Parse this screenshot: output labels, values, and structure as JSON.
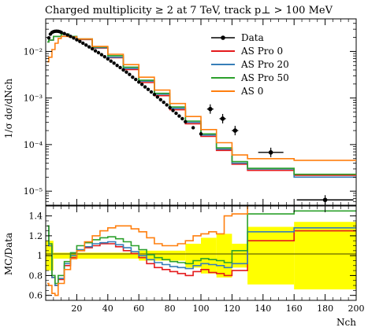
{
  "chart_data": {
    "type": "line",
    "title": "Charged multiplicity ≥ 2 at 7 TeV, track p⊥ > 100 MeV",
    "top_panel": {
      "ylabel": "1/σ dσ/dNch",
      "yscale": "log",
      "ylim": [
        5e-06,
        0.05
      ],
      "yticks": [
        "10⁻²",
        "10⁻³",
        "10⁻⁴",
        "10⁻⁵"
      ],
      "legend": [
        "Data",
        "AS Pro 0",
        "AS Pro 20",
        "AS Pro 50",
        "AS 0"
      ],
      "legend_position": "top-right"
    },
    "ratio_panel": {
      "ylabel": "MC/Data",
      "ylim": [
        0.55,
        1.5
      ],
      "yticks": [
        "0.6",
        "0.8",
        "1",
        "1.2",
        "1.4"
      ]
    },
    "x": {
      "label": "Nch",
      "lim": [
        0,
        200
      ],
      "ticks": [
        "20",
        "40",
        "60",
        "80",
        "100",
        "120",
        "140",
        "160",
        "180",
        "200"
      ]
    },
    "series": [
      {
        "name": "Data",
        "color": "#000000",
        "points": [
          [
            2,
            0.0195
          ],
          [
            3,
            0.0235
          ],
          [
            4,
            0.0255
          ],
          [
            5,
            0.0265
          ],
          [
            6,
            0.027
          ],
          [
            7,
            0.0272
          ],
          [
            8,
            0.027
          ],
          [
            9,
            0.0265
          ],
          [
            10,
            0.0258
          ],
          [
            12,
            0.0242
          ],
          [
            14,
            0.0226
          ],
          [
            16,
            0.021
          ],
          [
            18,
            0.0194
          ],
          [
            20,
            0.0178
          ],
          [
            22,
            0.0164
          ],
          [
            24,
            0.015
          ],
          [
            26,
            0.0137
          ],
          [
            28,
            0.0125
          ],
          [
            30,
            0.0114
          ],
          [
            32,
            0.0103
          ],
          [
            34,
            0.0094
          ],
          [
            36,
            0.0085
          ],
          [
            38,
            0.0077
          ],
          [
            40,
            0.0069
          ],
          [
            42,
            0.0062
          ],
          [
            44,
            0.0056
          ],
          [
            46,
            0.005
          ],
          [
            48,
            0.0045
          ],
          [
            50,
            0.004
          ],
          [
            52,
            0.0036
          ],
          [
            54,
            0.0032
          ],
          [
            56,
            0.0028
          ],
          [
            58,
            0.0025
          ],
          [
            60,
            0.0022
          ],
          [
            62,
            0.00196
          ],
          [
            64,
            0.00173
          ],
          [
            66,
            0.00153
          ],
          [
            68,
            0.00135
          ],
          [
            70,
            0.00119
          ],
          [
            72,
            0.00105
          ],
          [
            74,
            0.00092
          ],
          [
            76,
            0.00081
          ],
          [
            78,
            0.00071
          ],
          [
            80,
            0.00062
          ],
          [
            82,
            0.00054
          ],
          [
            84,
            0.00047
          ],
          [
            86,
            0.00041
          ],
          [
            88,
            0.00036
          ],
          [
            90,
            0.00031
          ],
          [
            95,
            0.00023
          ],
          [
            100,
            0.00017
          ],
          [
            106,
            0.00058
          ],
          [
            114,
            0.00036
          ],
          [
            122,
            0.0002
          ],
          [
            145,
            6.8e-05
          ],
          [
            180,
            6.5e-06
          ]
        ]
      },
      {
        "name": "AS Pro 0",
        "color": "#e41a1c",
        "points": [
          [
            1,
            0.016
          ],
          [
            2,
            0.0175
          ],
          [
            5,
            0.021
          ],
          [
            10,
            0.0235
          ],
          [
            15,
            0.021
          ],
          [
            20,
            0.018
          ],
          [
            30,
            0.0118
          ],
          [
            40,
            0.0073
          ],
          [
            50,
            0.0041
          ],
          [
            60,
            0.00215
          ],
          [
            70,
            0.00112
          ],
          [
            80,
            0.00056
          ],
          [
            90,
            0.00028
          ],
          [
            100,
            0.00015
          ],
          [
            110,
            7.5e-05
          ],
          [
            120,
            3.8e-05
          ],
          [
            130,
            2.8e-05
          ],
          [
            160,
            2.2e-05
          ],
          [
            200,
            2.2e-05
          ]
        ]
      },
      {
        "name": "AS Pro 20",
        "color": "#377eb8",
        "points": [
          [
            1,
            0.016
          ],
          [
            2,
            0.0175
          ],
          [
            5,
            0.021
          ],
          [
            10,
            0.0235
          ],
          [
            15,
            0.021
          ],
          [
            20,
            0.0182
          ],
          [
            30,
            0.012
          ],
          [
            40,
            0.0075
          ],
          [
            50,
            0.0043
          ],
          [
            60,
            0.0023
          ],
          [
            70,
            0.00121
          ],
          [
            80,
            0.0006
          ],
          [
            90,
            0.0003
          ],
          [
            100,
            0.00016
          ],
          [
            110,
            8e-05
          ],
          [
            120,
            4e-05
          ],
          [
            130,
            3e-05
          ],
          [
            160,
            2e-05
          ],
          [
            200,
            2e-05
          ]
        ]
      },
      {
        "name": "AS Pro 50",
        "color": "#2ca02c",
        "points": [
          [
            1,
            0.016
          ],
          [
            2,
            0.0175
          ],
          [
            5,
            0.021
          ],
          [
            10,
            0.0235
          ],
          [
            15,
            0.021
          ],
          [
            20,
            0.0185
          ],
          [
            30,
            0.0125
          ],
          [
            40,
            0.0081
          ],
          [
            50,
            0.0046
          ],
          [
            60,
            0.0024
          ],
          [
            70,
            0.00126
          ],
          [
            80,
            0.00064
          ],
          [
            90,
            0.00032
          ],
          [
            100,
            0.00017
          ],
          [
            110,
            8.5e-05
          ],
          [
            120,
            4.3e-05
          ],
          [
            130,
            3.1e-05
          ],
          [
            160,
            2.3e-05
          ],
          [
            200,
            2.3e-05
          ]
        ]
      },
      {
        "name": "AS 0",
        "color": "#ff7f0e",
        "points": [
          [
            1,
            0.006
          ],
          [
            2,
            0.0075
          ],
          [
            4,
            0.011
          ],
          [
            6,
            0.015
          ],
          [
            8,
            0.019
          ],
          [
            10,
            0.021
          ],
          [
            15,
            0.0205
          ],
          [
            20,
            0.0185
          ],
          [
            30,
            0.0128
          ],
          [
            40,
            0.0087
          ],
          [
            50,
            0.0052
          ],
          [
            60,
            0.0028
          ],
          [
            70,
            0.00148
          ],
          [
            80,
            0.00076
          ],
          [
            90,
            0.0004
          ],
          [
            100,
            0.00021
          ],
          [
            110,
            0.00011
          ],
          [
            120,
            6e-05
          ],
          [
            130,
            5e-05
          ],
          [
            160,
            4.6e-05
          ],
          [
            200,
            4.6e-05
          ]
        ]
      }
    ],
    "ratios": [
      {
        "name": "AS Pro 0",
        "color": "#e41a1c",
        "points": [
          [
            1,
            1.3
          ],
          [
            2,
            1.1
          ],
          [
            4,
            0.78
          ],
          [
            6,
            0.7
          ],
          [
            8,
            0.76
          ],
          [
            12,
            0.9
          ],
          [
            16,
            0.98
          ],
          [
            20,
            1.05
          ],
          [
            25,
            1.08
          ],
          [
            30,
            1.1
          ],
          [
            35,
            1.12
          ],
          [
            40,
            1.12
          ],
          [
            45,
            1.09
          ],
          [
            50,
            1.05
          ],
          [
            55,
            1.02
          ],
          [
            60,
            0.98
          ],
          [
            65,
            0.92
          ],
          [
            70,
            0.88
          ],
          [
            75,
            0.86
          ],
          [
            80,
            0.84
          ],
          [
            85,
            0.82
          ],
          [
            90,
            0.8
          ],
          [
            95,
            0.84
          ],
          [
            100,
            0.86
          ],
          [
            105,
            0.83
          ],
          [
            110,
            0.82
          ],
          [
            115,
            0.8
          ],
          [
            120,
            0.85
          ],
          [
            130,
            1.15
          ],
          [
            160,
            1.25
          ],
          [
            200,
            1.25
          ]
        ]
      },
      {
        "name": "AS Pro 20",
        "color": "#377eb8",
        "points": [
          [
            1,
            1.3
          ],
          [
            2,
            1.1
          ],
          [
            4,
            0.78
          ],
          [
            6,
            0.7
          ],
          [
            8,
            0.77
          ],
          [
            12,
            0.92
          ],
          [
            16,
            1.0
          ],
          [
            20,
            1.06
          ],
          [
            25,
            1.09
          ],
          [
            30,
            1.12
          ],
          [
            35,
            1.13
          ],
          [
            40,
            1.14
          ],
          [
            45,
            1.11
          ],
          [
            50,
            1.08
          ],
          [
            55,
            1.04
          ],
          [
            60,
            1.0
          ],
          [
            65,
            0.96
          ],
          [
            70,
            0.93
          ],
          [
            75,
            0.91
          ],
          [
            80,
            0.89
          ],
          [
            85,
            0.88
          ],
          [
            90,
            0.87
          ],
          [
            95,
            0.9
          ],
          [
            100,
            0.92
          ],
          [
            105,
            0.91
          ],
          [
            110,
            0.9
          ],
          [
            115,
            0.88
          ],
          [
            120,
            0.92
          ],
          [
            130,
            1.24
          ],
          [
            160,
            1.28
          ],
          [
            200,
            1.28
          ]
        ]
      },
      {
        "name": "AS Pro 50",
        "color": "#2ca02c",
        "points": [
          [
            1,
            1.3
          ],
          [
            2,
            1.12
          ],
          [
            4,
            0.8
          ],
          [
            6,
            0.72
          ],
          [
            8,
            0.8
          ],
          [
            12,
            0.94
          ],
          [
            16,
            1.03
          ],
          [
            20,
            1.1
          ],
          [
            25,
            1.13
          ],
          [
            30,
            1.16
          ],
          [
            35,
            1.18
          ],
          [
            40,
            1.19
          ],
          [
            45,
            1.17
          ],
          [
            50,
            1.14
          ],
          [
            55,
            1.1
          ],
          [
            60,
            1.06
          ],
          [
            65,
            1.01
          ],
          [
            70,
            0.98
          ],
          [
            75,
            0.96
          ],
          [
            80,
            0.94
          ],
          [
            85,
            0.93
          ],
          [
            90,
            0.92
          ],
          [
            95,
            0.95
          ],
          [
            100,
            0.97
          ],
          [
            105,
            0.96
          ],
          [
            110,
            0.95
          ],
          [
            115,
            0.93
          ],
          [
            120,
            1.05
          ],
          [
            130,
            1.42
          ],
          [
            160,
            1.45
          ],
          [
            200,
            1.45
          ]
        ]
      },
      {
        "name": "AS 0",
        "color": "#ff7f0e",
        "points": [
          [
            1,
            0.72
          ],
          [
            2,
            0.7
          ],
          [
            4,
            0.62
          ],
          [
            6,
            0.6
          ],
          [
            8,
            0.72
          ],
          [
            12,
            0.86
          ],
          [
            16,
            0.97
          ],
          [
            20,
            1.05
          ],
          [
            25,
            1.14
          ],
          [
            30,
            1.2
          ],
          [
            35,
            1.25
          ],
          [
            40,
            1.28
          ],
          [
            45,
            1.3
          ],
          [
            50,
            1.3
          ],
          [
            55,
            1.27
          ],
          [
            60,
            1.24
          ],
          [
            65,
            1.18
          ],
          [
            70,
            1.12
          ],
          [
            75,
            1.1
          ],
          [
            80,
            1.1
          ],
          [
            85,
            1.12
          ],
          [
            90,
            1.15
          ],
          [
            95,
            1.2
          ],
          [
            100,
            1.22
          ],
          [
            105,
            1.24
          ],
          [
            110,
            1.22
          ],
          [
            115,
            1.4
          ],
          [
            120,
            1.42
          ],
          [
            125,
            1.42
          ],
          [
            130,
            1.55
          ]
        ]
      }
    ],
    "uncertainty_band": {
      "color": "#ffff00",
      "bins": [
        [
          0,
          5,
          0.15
        ],
        [
          5,
          60,
          0.03
        ],
        [
          60,
          90,
          0.05
        ],
        [
          90,
          100,
          0.12
        ],
        [
          100,
          110,
          0.18
        ],
        [
          110,
          120,
          0.22
        ],
        [
          120,
          130,
          0.12
        ],
        [
          130,
          160,
          0.29
        ],
        [
          160,
          200,
          0.34
        ]
      ]
    }
  }
}
